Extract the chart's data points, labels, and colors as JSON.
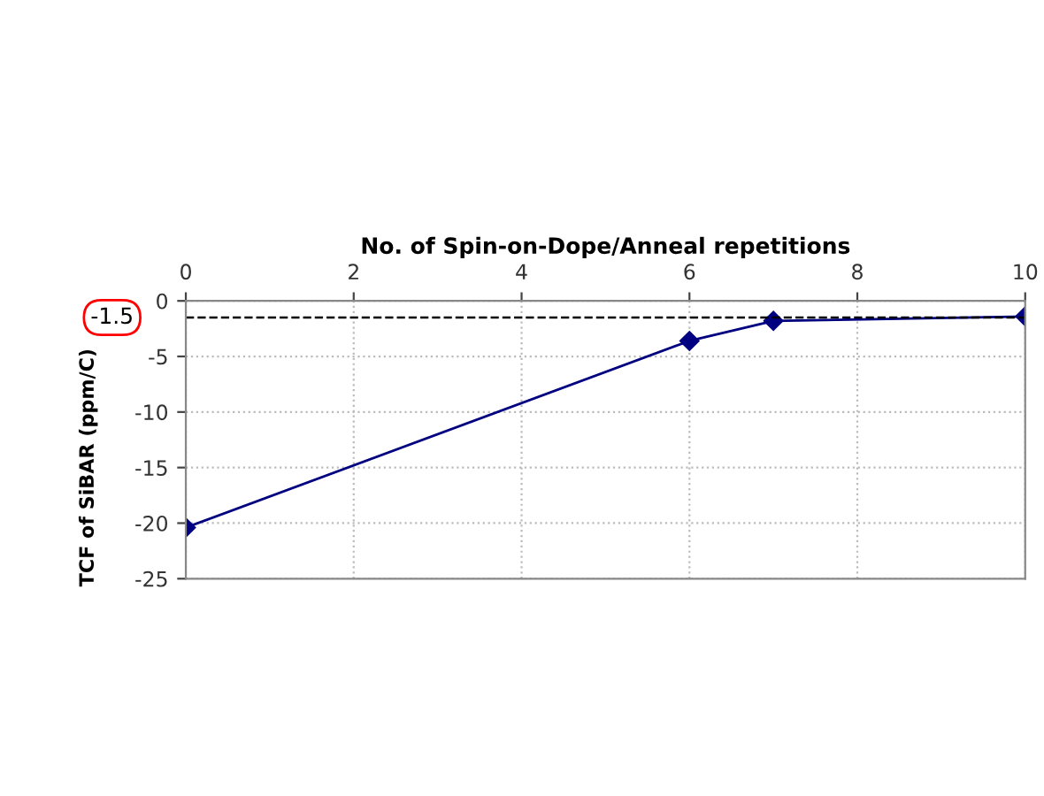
{
  "chart_data": {
    "type": "line",
    "xlabel": "No. of Spin-on-Dope/Anneal repetitions",
    "ylabel": "TCF of SiBAR (ppm/C)",
    "x": [
      0,
      6,
      7,
      10
    ],
    "series": [
      {
        "color": "#000080",
        "values": [
          -20.4,
          -3.6,
          -1.8,
          -1.4
        ]
      }
    ],
    "xlim": [
      0,
      10
    ],
    "xticks": [
      0,
      2,
      4,
      6,
      8,
      10
    ],
    "ylim": [
      -25,
      0
    ],
    "yticks": [
      -25,
      -20,
      -15,
      -10,
      -5,
      0
    ],
    "ref_lines": [
      {
        "axis": "y",
        "value": -1.5,
        "label": "-1.5",
        "color": "#000000",
        "line_style": "dashed"
      }
    ],
    "grid": true,
    "marker": "diamond",
    "line_style": "solid"
  }
}
